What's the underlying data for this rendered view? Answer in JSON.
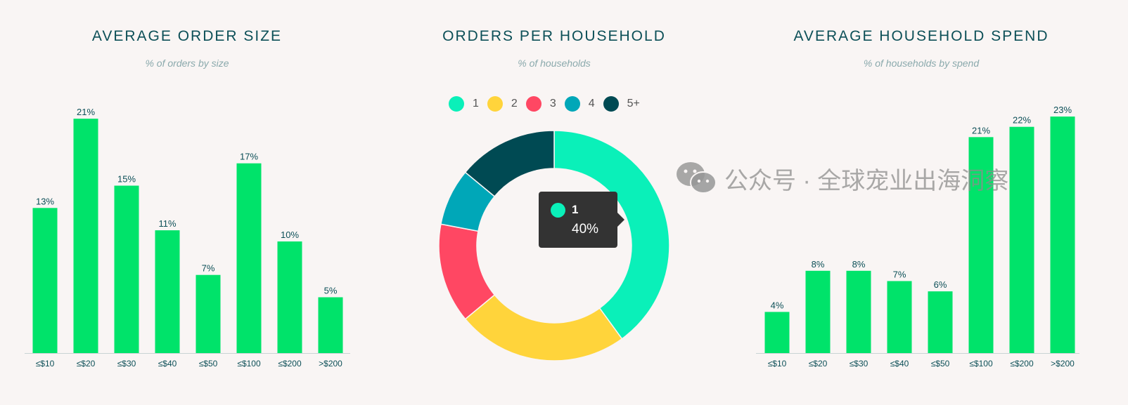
{
  "chart_data": [
    {
      "type": "bar",
      "title": "AVERAGE ORDER SIZE",
      "subtitle": "% of orders by size",
      "categories": [
        "≤$10",
        "≤$20",
        "≤$30",
        "≤$40",
        "≤$50",
        "≤$100",
        "≤$200",
        ">$200"
      ],
      "values": [
        13,
        21,
        15,
        11,
        7,
        17,
        10,
        5
      ],
      "unit": "%",
      "color": "#00e36a"
    },
    {
      "type": "pie",
      "title": "ORDERS PER HOUSEHOLD",
      "subtitle": "% of households",
      "hole": true,
      "categories": [
        "1",
        "2",
        "3",
        "4",
        "5+"
      ],
      "values": [
        40,
        24,
        14,
        8,
        14
      ],
      "colors": [
        "#0af0b9",
        "#ffd43b",
        "#ff4763",
        "#00a7b8",
        "#004a53"
      ],
      "legend": "top",
      "tooltip": {
        "category": "1",
        "value": "40%"
      }
    },
    {
      "type": "bar",
      "title": "AVERAGE HOUSEHOLD SPEND",
      "subtitle": "% of households by spend",
      "categories": [
        "≤$10",
        "≤$20",
        "≤$30",
        "≤$40",
        "≤$50",
        "≤$100",
        "≤$200",
        ">$200"
      ],
      "values": [
        4,
        8,
        8,
        7,
        6,
        21,
        22,
        23
      ],
      "unit": "%",
      "color": "#00e36a"
    }
  ],
  "watermark": {
    "text": "公众号 · 全球宠业出海洞察",
    "icon": "wechat-icon"
  }
}
